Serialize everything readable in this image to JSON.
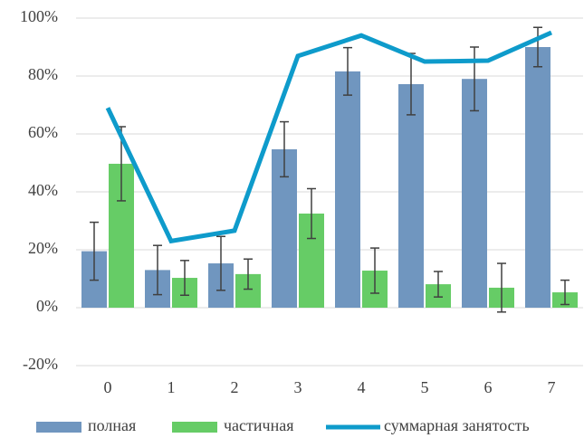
{
  "chart_data": {
    "type": "bar",
    "categories": [
      "0",
      "1",
      "2",
      "3",
      "4",
      "5",
      "6",
      "7"
    ],
    "series": [
      {
        "name": "полная",
        "color": "#7096bf",
        "values": [
          19.5,
          13,
          15.3,
          54.7,
          81.6,
          77.2,
          79,
          90
        ],
        "errors": [
          10,
          8.5,
          9.3,
          9.5,
          8.2,
          10.6,
          11,
          6.8
        ]
      },
      {
        "name": "частичная",
        "color": "#66cc66",
        "values": [
          49.7,
          10.3,
          11.6,
          32.5,
          12.8,
          8.1,
          6.9,
          5.3
        ],
        "errors": [
          12.8,
          6,
          5.2,
          8.6,
          7.8,
          4.4,
          8.4,
          4.2
        ]
      },
      {
        "name": "суммарная занятость",
        "type": "line",
        "color": "#0e9bcb",
        "values": [
          69,
          23,
          26.6,
          86.9,
          94,
          85,
          85.3,
          95
        ]
      }
    ],
    "ylim": [
      -20,
      100
    ],
    "yticks": [
      {
        "value": -20,
        "label": "-20%"
      },
      {
        "value": 0,
        "label": "0%"
      },
      {
        "value": 20,
        "label": "20%"
      },
      {
        "value": 40,
        "label": "40%"
      },
      {
        "value": 60,
        "label": "60%"
      },
      {
        "value": 80,
        "label": "80%"
      },
      {
        "value": 100,
        "label": "100%"
      }
    ],
    "grid": true,
    "legend": "bottom"
  }
}
